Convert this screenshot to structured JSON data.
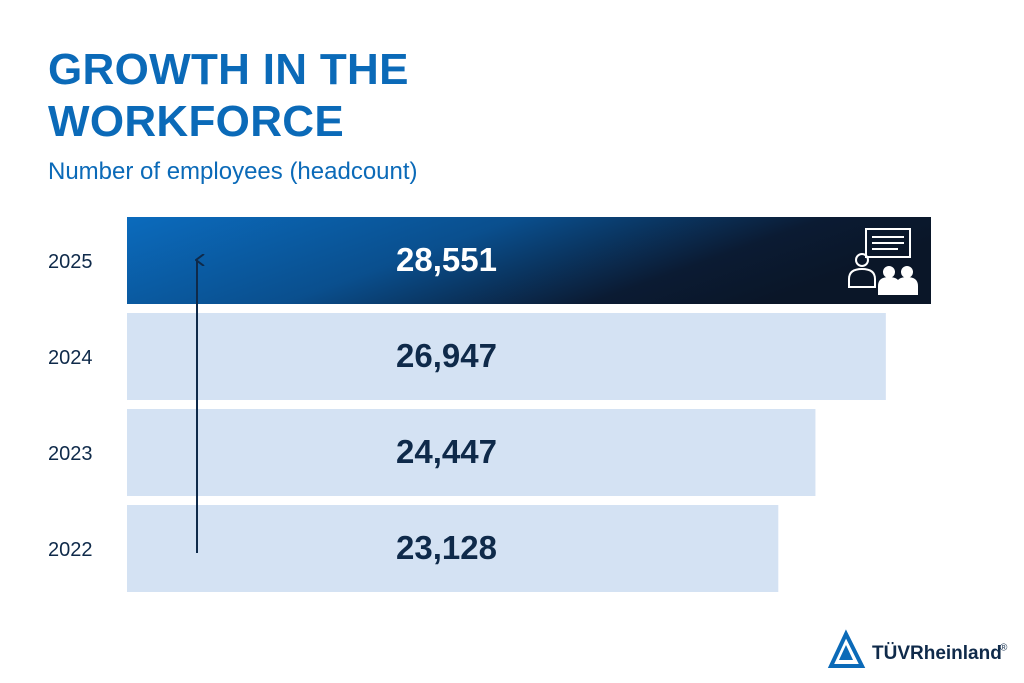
{
  "chart_data": {
    "type": "bar",
    "orientation": "horizontal",
    "title": "GROWTH IN THE WORKFORCE",
    "subtitle": "Number of employees (headcount)",
    "categories": [
      "2025",
      "2024",
      "2023",
      "2022"
    ],
    "values": [
      28551,
      26947,
      24447,
      23128
    ],
    "value_labels": [
      "28,551",
      "26,947",
      "24,447",
      "23,128"
    ],
    "colors": [
      "#0b6bbd",
      "#d4e2f3",
      "#d4e2f3",
      "#d4e2f3"
    ],
    "logo": "TÜVRheinland",
    "logo_mark": "®"
  }
}
